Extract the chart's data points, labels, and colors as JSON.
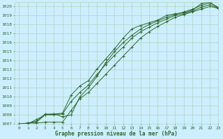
{
  "title": "Graphe pression niveau de la mer (hPa)",
  "bg_color": "#cceeff",
  "line_color": "#2d6a2d",
  "grid_color": "#aaccaa",
  "xlim": [
    -0.5,
    23
  ],
  "ylim": [
    1007,
    1020.5
  ],
  "xticks": [
    0,
    1,
    2,
    3,
    4,
    5,
    6,
    7,
    8,
    9,
    10,
    11,
    12,
    13,
    14,
    15,
    16,
    17,
    18,
    19,
    20,
    21,
    22,
    23
  ],
  "yticks": [
    1007,
    1008,
    1009,
    1010,
    1011,
    1012,
    1013,
    1014,
    1015,
    1016,
    1017,
    1018,
    1019,
    1020
  ],
  "series": [
    [
      1007.0,
      1007.1,
      1007.3,
      1008.1,
      1008.1,
      1008.2,
      1010.2,
      1011.2,
      1011.8,
      1013.1,
      1014.2,
      1015.3,
      1016.5,
      1017.5,
      1017.9,
      1018.2,
      1018.5,
      1019.0,
      1019.2,
      1019.3,
      1019.6,
      1020.3,
      1020.5,
      1019.8
    ],
    [
      1007.0,
      1007.1,
      1007.1,
      1007.2,
      1007.2,
      1007.2,
      1008.5,
      1009.8,
      1010.5,
      1011.5,
      1012.5,
      1013.5,
      1014.5,
      1015.5,
      1016.5,
      1017.2,
      1017.8,
      1018.3,
      1018.8,
      1019.1,
      1019.4,
      1019.7,
      1020.0,
      1019.8
    ],
    [
      1007.0,
      1007.1,
      1007.2,
      1008.0,
      1008.0,
      1008.1,
      1009.5,
      1010.5,
      1011.3,
      1012.5,
      1013.6,
      1014.6,
      1015.5,
      1016.5,
      1017.2,
      1017.7,
      1018.2,
      1018.6,
      1019.0,
      1019.2,
      1019.5,
      1019.9,
      1020.2,
      1019.8
    ],
    [
      1007.0,
      1007.0,
      1007.5,
      1008.0,
      1008.1,
      1007.8,
      1008.0,
      1010.0,
      1011.0,
      1012.3,
      1013.8,
      1015.0,
      1016.0,
      1016.8,
      1017.5,
      1018.0,
      1018.4,
      1018.8,
      1019.1,
      1019.4,
      1019.7,
      1020.1,
      1020.4,
      1019.9
    ]
  ]
}
